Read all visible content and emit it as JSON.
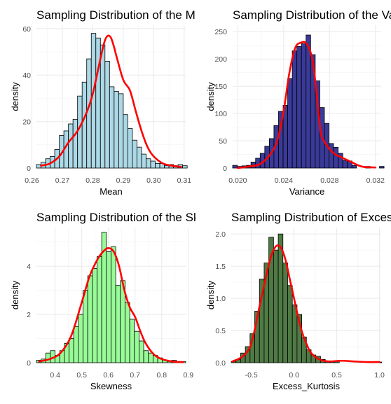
{
  "chart_data": [
    {
      "type": "bar",
      "title": "Sampling Distribution of the Mean",
      "xlabel": "Mean",
      "ylabel": "density",
      "fill": "#add8e6",
      "curve_color": "#ff0000",
      "xlim": [
        0.2615,
        0.3105
      ],
      "ylim": [
        0,
        61.5
      ],
      "x_ticks": [
        0.26,
        0.27,
        0.28,
        0.29,
        0.3,
        0.31
      ],
      "x_tick_labels": [
        "0.26",
        "0.27",
        "0.28",
        "0.29",
        "0.30",
        "0.31"
      ],
      "y_ticks": [
        0,
        20,
        40,
        60
      ],
      "y_tick_labels": [
        "0",
        "20",
        "40",
        "60"
      ],
      "bins": {
        "start": 0.2615,
        "width": 0.0015,
        "values": [
          1.5,
          2.5,
          4,
          5,
          8,
          14,
          16,
          19,
          21,
          31,
          37,
          47,
          58,
          56,
          53,
          46,
          35,
          33,
          32,
          23,
          17,
          12,
          9,
          6,
          4,
          3,
          2,
          2,
          1,
          1.5,
          1,
          1.5,
          1
        ]
      },
      "density_curve": {
        "x": [
          0.263,
          0.266,
          0.269,
          0.272,
          0.275,
          0.278,
          0.28,
          0.282,
          0.283,
          0.284,
          0.285,
          0.286,
          0.287,
          0.288,
          0.29,
          0.292,
          0.293,
          0.294,
          0.296,
          0.298,
          0.3,
          0.303,
          0.306,
          0.309
        ],
        "y": [
          1,
          2,
          5,
          11,
          16,
          24,
          32,
          44,
          50,
          55,
          57,
          56,
          52,
          47,
          38,
          34,
          30,
          25,
          16,
          9,
          5,
          2,
          1,
          0.5
        ]
      }
    },
    {
      "type": "bar",
      "title": "Sampling Distribution of the Variance",
      "xlabel": "Variance",
      "ylabel": "density",
      "fill": "#3a3a98",
      "curve_color": "#ff0000",
      "xlim": [
        0.01955,
        0.0325
      ],
      "ylim": [
        0,
        262
      ],
      "x_ticks": [
        0.02,
        0.024,
        0.028,
        0.032
      ],
      "x_tick_labels": [
        "0.020",
        "0.024",
        "0.028",
        "0.032"
      ],
      "y_ticks": [
        0,
        50,
        100,
        150,
        200,
        250
      ],
      "y_tick_labels": [
        "0",
        "50",
        "100",
        "150",
        "200",
        "250"
      ],
      "bins": {
        "start": 0.01955,
        "width": 0.0004,
        "values": [
          5,
          3,
          4,
          5,
          11,
          18,
          27,
          40,
          54,
          78,
          104,
          115,
          164,
          215,
          223,
          228,
          244,
          208,
          160,
          111,
          82,
          45,
          38,
          27,
          14,
          13,
          5,
          0,
          0,
          3,
          0,
          0,
          3
        ]
      },
      "density_curve": {
        "x": [
          0.02,
          0.021,
          0.022,
          0.023,
          0.0235,
          0.024,
          0.0245,
          0.025,
          0.0255,
          0.026,
          0.0265,
          0.0268,
          0.0272,
          0.0275,
          0.028,
          0.0285,
          0.029,
          0.0295,
          0.03,
          0.0305,
          0.031,
          0.032
        ],
        "y": [
          0,
          3,
          8,
          30,
          55,
          105,
          175,
          220,
          230,
          228,
          200,
          150,
          70,
          50,
          35,
          25,
          20,
          15,
          10,
          5,
          2,
          1
        ]
      }
    },
    {
      "type": "bar",
      "title": "Sampling Distribution of the Skewness",
      "xlabel": "Skewness",
      "ylabel": "density",
      "fill": "#98fb98",
      "curve_color": "#ff0000",
      "xlim": [
        0.33,
        0.89
      ],
      "ylim": [
        0,
        5.6
      ],
      "x_ticks": [
        0.4,
        0.5,
        0.6,
        0.7,
        0.8,
        0.9
      ],
      "x_tick_labels": [
        "0.4",
        "0.5",
        "0.6",
        "0.7",
        "0.8",
        "0.9"
      ],
      "y_ticks": [
        0,
        2,
        4
      ],
      "y_tick_labels": [
        "0",
        "2",
        "4"
      ],
      "bins": {
        "start": 0.33,
        "width": 0.0175,
        "values": [
          0.1,
          0.15,
          0.4,
          0.5,
          0.3,
          0.5,
          0.8,
          1.0,
          1.5,
          2.0,
          3.0,
          3.6,
          3.9,
          4.4,
          5.4,
          4.6,
          4.8,
          3.2,
          3.4,
          2.5,
          1.8,
          1.3,
          0.9,
          0.5,
          0.4,
          0.3,
          0.2,
          0.1,
          0.05,
          0.1,
          0.05,
          0.05
        ]
      },
      "density_curve": {
        "x": [
          0.34,
          0.38,
          0.42,
          0.46,
          0.5,
          0.53,
          0.56,
          0.58,
          0.6,
          0.62,
          0.64,
          0.66,
          0.68,
          0.7,
          0.72,
          0.74,
          0.77,
          0.8,
          0.84,
          0.88
        ],
        "y": [
          0.05,
          0.15,
          0.4,
          1.1,
          2.5,
          3.6,
          4.3,
          4.6,
          4.75,
          4.6,
          4.0,
          3.0,
          2.3,
          1.9,
          1.3,
          0.8,
          0.35,
          0.15,
          0.05,
          0.02
        ]
      }
    },
    {
      "type": "bar",
      "title": "Sampling Distribution of Excess Kurtosis",
      "xlabel": "Excess_Kurtosis",
      "ylabel": "density",
      "fill": "#4f7a45",
      "curve_color": "#ff0000",
      "xlim": [
        -0.735,
        1.02
      ],
      "ylim": [
        0,
        2.1
      ],
      "x_ticks": [
        -0.5,
        0.0,
        0.5,
        1.0
      ],
      "x_tick_labels": [
        "-0.5",
        "0.0",
        "0.5",
        "1.0"
      ],
      "y_ticks": [
        0,
        0.5,
        1.0,
        1.5,
        2.0
      ],
      "y_tick_labels": [
        "0.0",
        "0.5",
        "1.0",
        "1.5",
        "2.0"
      ],
      "bins": {
        "start": -0.735,
        "width": 0.055,
        "values": [
          0.02,
          0.05,
          0.15,
          0.25,
          0.45,
          0.8,
          1.3,
          1.55,
          1.95,
          1.75,
          2.0,
          1.55,
          1.2,
          0.9,
          0.75,
          0.4,
          0.2,
          0.12,
          0.1,
          0.05,
          0.02,
          0.02,
          0.02,
          0.0,
          0.0,
          0.0,
          0.0,
          0.0,
          0.0,
          0.0,
          0.0,
          0.01
        ]
      },
      "density_curve": {
        "x": [
          -0.72,
          -0.6,
          -0.5,
          -0.4,
          -0.3,
          -0.25,
          -0.2,
          -0.15,
          -0.1,
          -0.05,
          0.0,
          0.05,
          0.1,
          0.15,
          0.2,
          0.3,
          0.4,
          0.55,
          0.7,
          0.85,
          1.0
        ],
        "y": [
          0.02,
          0.1,
          0.3,
          0.9,
          1.5,
          1.72,
          1.82,
          1.78,
          1.6,
          1.3,
          1.0,
          0.7,
          0.45,
          0.28,
          0.15,
          0.05,
          0.02,
          0.03,
          0.02,
          0.01,
          0.01
        ]
      }
    }
  ]
}
